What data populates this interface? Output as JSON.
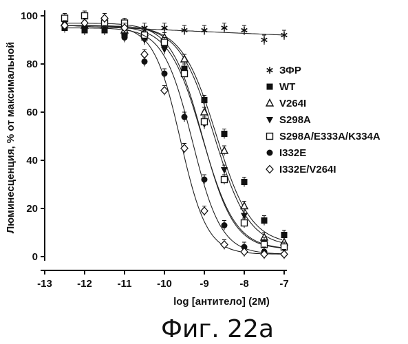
{
  "chart_data": {
    "type": "scatter",
    "title": "",
    "xlabel": "log [антитело] (2M)",
    "ylabel": "Люминесценция, % от максимальной",
    "xlim": [
      -13,
      -7
    ],
    "ylim": [
      0,
      100
    ],
    "x_ticks": [
      "-13",
      "-12",
      "-11",
      "-10",
      "-9",
      "-8",
      "-7"
    ],
    "y_ticks": [
      "0",
      "20",
      "40",
      "60",
      "80",
      "100"
    ],
    "legend_position": "right",
    "grid": false,
    "series": [
      {
        "name": "ЗФР",
        "marker": "asterisk",
        "x": [
          -12.5,
          -12,
          -11.5,
          -11,
          -10.5,
          -10,
          -9.5,
          -9,
          -8.5,
          -8,
          -7.5,
          -7
        ],
        "y": [
          97,
          95,
          97,
          93,
          95,
          95,
          94,
          94,
          95,
          94,
          90,
          92
        ],
        "fit": {
          "type": "linear",
          "top": 96,
          "bottom": 92
        }
      },
      {
        "name": "WT",
        "marker": "filled-square",
        "x": [
          -12.5,
          -12,
          -11.5,
          -11,
          -10.5,
          -10,
          -9.5,
          -9,
          -8.5,
          -8,
          -7.5,
          -7
        ],
        "y": [
          95,
          94,
          94,
          92,
          91,
          88,
          78,
          65,
          51,
          31,
          15,
          9
        ],
        "fit": {
          "type": "sigmoid",
          "top": 96,
          "bottom": 5,
          "logEC50": -8.7,
          "hill": 1
        }
      },
      {
        "name": "V264I",
        "marker": "open-triangle-up",
        "x": [
          -12.5,
          -12,
          -11.5,
          -11,
          -10.5,
          -10,
          -9.5,
          -9,
          -8.5,
          -8,
          -7.5,
          -7
        ],
        "y": [
          97,
          96,
          96,
          94,
          93,
          91,
          82,
          60,
          44,
          21,
          8,
          6
        ],
        "fit": {
          "type": "sigmoid",
          "top": 96,
          "bottom": 4,
          "logEC50": -8.75,
          "hill": 1
        }
      },
      {
        "name": "S298A",
        "marker": "filled-triangle-down",
        "x": [
          -12.5,
          -12,
          -11.5,
          -11,
          -10.5,
          -10,
          -9.5,
          -9,
          -8.5,
          -8,
          -7.5,
          -7
        ],
        "y": [
          97,
          95,
          95,
          91,
          90,
          86,
          76,
          55,
          36,
          17,
          6,
          3
        ],
        "fit": {
          "type": "sigmoid",
          "top": 96,
          "bottom": 3,
          "logEC50": -9.05,
          "hill": 1.05
        }
      },
      {
        "name": "S298A/E333A/K334A",
        "marker": "open-square",
        "x": [
          -12.5,
          -12,
          -11.5,
          -11,
          -10.5,
          -10,
          -9.5,
          -9,
          -8.5,
          -8,
          -7.5,
          -7
        ],
        "y": [
          99,
          100,
          97,
          97,
          92,
          89,
          76,
          56,
          32,
          14,
          5,
          4
        ],
        "fit": {
          "type": "sigmoid",
          "top": 97,
          "bottom": 3,
          "logEC50": -9.05,
          "hill": 1.1
        }
      },
      {
        "name": "I332E",
        "marker": "filled-circle",
        "x": [
          -12.5,
          -12,
          -11.5,
          -11,
          -10.5,
          -10,
          -9.5,
          -9,
          -8.5,
          -8,
          -7.5,
          -7
        ],
        "y": [
          95,
          95,
          94,
          91,
          81,
          76,
          58,
          32,
          13,
          4,
          2,
          1
        ],
        "fit": {
          "type": "sigmoid",
          "top": 95,
          "bottom": 1,
          "logEC50": -9.3,
          "hill": 1.2
        }
      },
      {
        "name": "I332E/V264I",
        "marker": "open-diamond",
        "x": [
          -12.5,
          -12,
          -11.5,
          -11,
          -10.5,
          -10,
          -9.5,
          -9,
          -8.5,
          -8,
          -7.5,
          -7
        ],
        "y": [
          96,
          97,
          99,
          95,
          84,
          69,
          45,
          19,
          5,
          2,
          1,
          1
        ],
        "fit": {
          "type": "sigmoid",
          "top": 96,
          "bottom": 1,
          "logEC50": -9.6,
          "hill": 1.3
        }
      }
    ]
  },
  "caption": "Фиг. 22a"
}
